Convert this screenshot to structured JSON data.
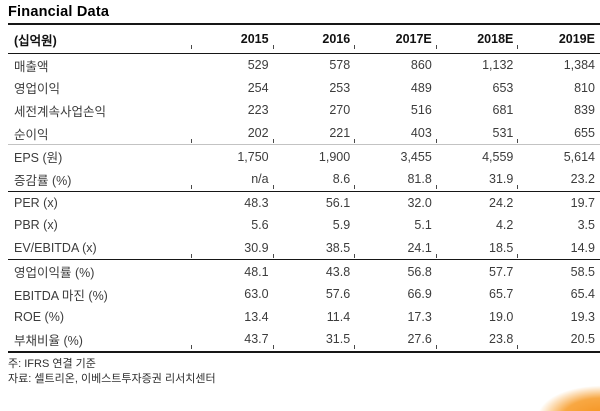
{
  "title": "Financial Data",
  "table": {
    "unit_label": "(십억원)",
    "columns": [
      "2015",
      "2016",
      "2017E",
      "2018E",
      "2019E"
    ],
    "sections": [
      {
        "rows": [
          {
            "label": "매출액",
            "values": [
              "529",
              "578",
              "860",
              "1,132",
              "1,384"
            ]
          },
          {
            "label": "영업이익",
            "values": [
              "254",
              "253",
              "489",
              "653",
              "810"
            ]
          },
          {
            "label": "세전계속사업손익",
            "values": [
              "223",
              "270",
              "516",
              "681",
              "839"
            ]
          },
          {
            "label": "순이익",
            "values": [
              "202",
              "221",
              "403",
              "531",
              "655"
            ]
          }
        ]
      },
      {
        "rows": [
          {
            "label": "EPS (원)",
            "values": [
              "1,750",
              "1,900",
              "3,455",
              "4,559",
              "5,614"
            ]
          },
          {
            "label": "증감률 (%)",
            "values": [
              "n/a",
              "8.6",
              "81.8",
              "31.9",
              "23.2"
            ]
          }
        ]
      },
      {
        "rows": [
          {
            "label": "PER (x)",
            "values": [
              "48.3",
              "56.1",
              "32.0",
              "24.2",
              "19.7"
            ]
          },
          {
            "label": "PBR (x)",
            "values": [
              "5.6",
              "5.9",
              "5.1",
              "4.2",
              "3.5"
            ]
          },
          {
            "label": "EV/EBITDA (x)",
            "values": [
              "30.9",
              "38.5",
              "24.1",
              "18.5",
              "14.9"
            ]
          }
        ]
      },
      {
        "rows": [
          {
            "label": "영업이익률 (%)",
            "values": [
              "48.1",
              "43.8",
              "56.8",
              "57.7",
              "58.5"
            ]
          },
          {
            "label": "EBITDA 마진 (%)",
            "values": [
              "63.0",
              "57.6",
              "66.9",
              "65.7",
              "65.4"
            ]
          },
          {
            "label": "ROE (%)",
            "values": [
              "13.4",
              "11.4",
              "17.3",
              "19.0",
              "19.3"
            ]
          },
          {
            "label": "부채비율 (%)",
            "values": [
              "43.7",
              "31.5",
              "27.6",
              "23.8",
              "20.5"
            ]
          }
        ]
      }
    ]
  },
  "footnotes": [
    "주: IFRS 연결 기준",
    "자료: 셀트리온, 이베스트투자증권 리서치센터"
  ],
  "colors": {
    "rule_dark": "#161616",
    "rule_light": "#c3c3c3",
    "text": "#3c3c3c",
    "accent_corner": "#f5921e"
  }
}
